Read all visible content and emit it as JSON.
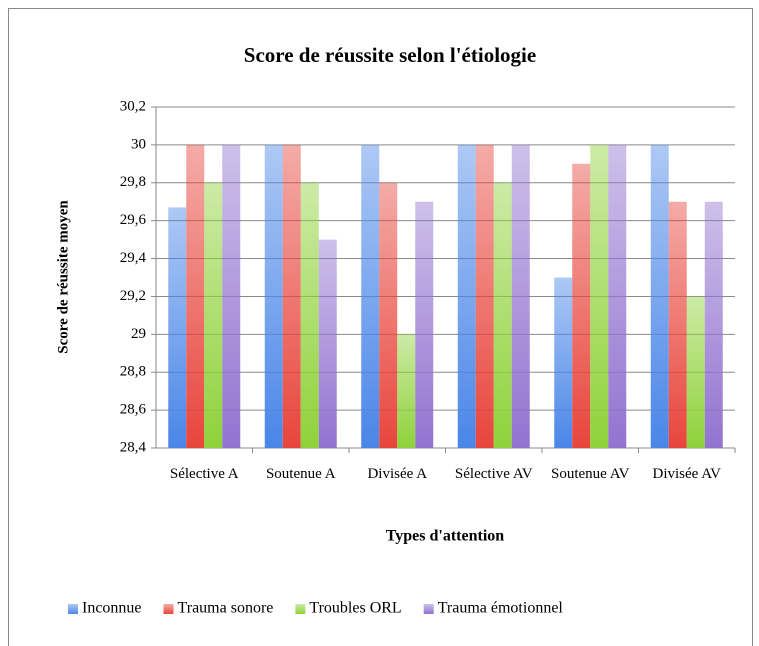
{
  "chart_data": {
    "type": "bar",
    "title": "Score de réussite selon l'étiologie",
    "x_label": "Types d'attention",
    "y_label": "Score de réussite moyen",
    "categories": [
      "Sélective A",
      "Soutenue A",
      "Divisée A",
      "Sélective AV",
      "Soutenue AV",
      "Divisée AV"
    ],
    "series": [
      {
        "name": "Inconnue",
        "color": "#4a86e8",
        "values": [
          29.67,
          30,
          30,
          30,
          29.3,
          30
        ]
      },
      {
        "name": "Trauma sonore",
        "color": "#e8453c",
        "values": [
          30,
          30,
          29.8,
          30,
          29.9,
          29.7
        ]
      },
      {
        "name": "Troubles ORL",
        "color": "#8fd23a",
        "values": [
          29.8,
          29.8,
          29,
          29.8,
          30,
          29.2
        ]
      },
      {
        "name": "Trauma émotionnel",
        "color": "#9273d0",
        "values": [
          30,
          29.5,
          29.7,
          30,
          30,
          29.7
        ]
      }
    ],
    "ylim": [
      28.4,
      30.2
    ],
    "yticks": [
      {
        "value": 28.4,
        "label": "28,4"
      },
      {
        "value": 28.6,
        "label": "28,6"
      },
      {
        "value": 28.8,
        "label": "28,8"
      },
      29,
      {
        "value": 29.2,
        "label": "29,2"
      },
      {
        "value": 29.4,
        "label": "29,4"
      },
      {
        "value": 29.6,
        "label": "29,6"
      },
      {
        "value": 29.8,
        "label": "29,8"
      },
      30,
      {
        "value": 30.2,
        "label": "30,2"
      }
    ],
    "grid": true,
    "legend": "bottom"
  }
}
